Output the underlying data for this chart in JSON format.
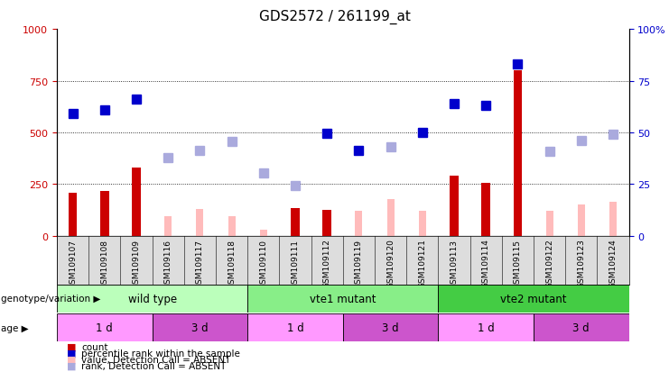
{
  "title": "GDS2572 / 261199_at",
  "samples": [
    "GSM109107",
    "GSM109108",
    "GSM109109",
    "GSM109116",
    "GSM109117",
    "GSM109118",
    "GSM109110",
    "GSM109111",
    "GSM109112",
    "GSM109119",
    "GSM109120",
    "GSM109121",
    "GSM109113",
    "GSM109114",
    "GSM109115",
    "GSM109122",
    "GSM109123",
    "GSM109124"
  ],
  "count_values": [
    210,
    215,
    330,
    null,
    null,
    null,
    null,
    135,
    125,
    null,
    null,
    null,
    290,
    255,
    800,
    null,
    null,
    null
  ],
  "count_absent_values": [
    null,
    null,
    null,
    95,
    130,
    95,
    30,
    null,
    null,
    120,
    180,
    120,
    null,
    null,
    null,
    120,
    150,
    165
  ],
  "rank_values": [
    59,
    61,
    66,
    null,
    null,
    null,
    null,
    null,
    49.5,
    41.5,
    null,
    50,
    64,
    63,
    83,
    null,
    null,
    null
  ],
  "rank_absent_values": [
    null,
    null,
    null,
    38,
    41.5,
    45.5,
    30.5,
    24.5,
    null,
    null,
    43,
    null,
    null,
    null,
    null,
    41,
    46,
    49
  ],
  "groups": [
    {
      "label": "wild type",
      "start": 0,
      "end": 6,
      "color": "#bbffbb"
    },
    {
      "label": "vte1 mutant",
      "start": 6,
      "end": 12,
      "color": "#88ee88"
    },
    {
      "label": "vte2 mutant",
      "start": 12,
      "end": 18,
      "color": "#44cc44"
    }
  ],
  "age_groups": [
    {
      "label": "1 d",
      "start": 0,
      "end": 3,
      "color": "#ff99ff"
    },
    {
      "label": "3 d",
      "start": 3,
      "end": 6,
      "color": "#cc55cc"
    },
    {
      "label": "1 d",
      "start": 6,
      "end": 9,
      "color": "#ff99ff"
    },
    {
      "label": "3 d",
      "start": 9,
      "end": 12,
      "color": "#cc55cc"
    },
    {
      "label": "1 d",
      "start": 12,
      "end": 15,
      "color": "#ff99ff"
    },
    {
      "label": "3 d",
      "start": 15,
      "end": 18,
      "color": "#cc55cc"
    }
  ],
  "ylim_left": [
    0,
    1000
  ],
  "ylim_right": [
    0,
    100
  ],
  "yticks_left": [
    0,
    250,
    500,
    750,
    1000
  ],
  "yticks_right": [
    0,
    25,
    50,
    75,
    100
  ],
  "ytick_labels_left": [
    "0",
    "250",
    "500",
    "750",
    "1000"
  ],
  "ytick_labels_right": [
    "0",
    "25",
    "50",
    "75",
    "100%"
  ],
  "left_color": "#cc0000",
  "right_color": "#0000cc",
  "count_color": "#cc0000",
  "count_absent_color": "#ffbbbb",
  "rank_color": "#0000cc",
  "rank_absent_color": "#aaaadd",
  "bar_width": 0.5,
  "marker_size": 7
}
